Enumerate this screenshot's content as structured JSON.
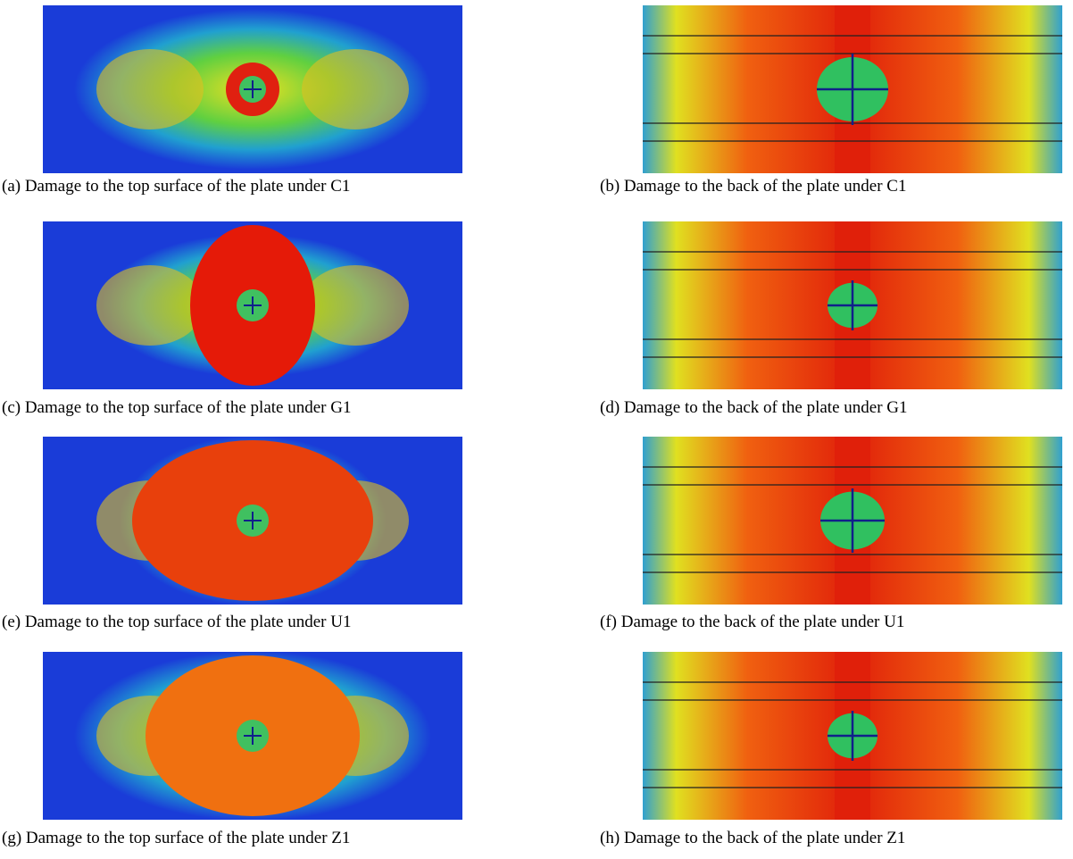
{
  "panels": [
    {
      "caption": "(a) Damage to the top surface of the plate under C1"
    },
    {
      "caption": "(b) Damage to the back of the plate under C1"
    },
    {
      "caption": "(c) Damage to the top surface of the plate under G1"
    },
    {
      "caption": "(d) Damage to the back of the plate under G1"
    },
    {
      "caption": "(e) Damage to the top surface of the plate under U1"
    },
    {
      "caption": "(f) Damage to the back of the plate under U1"
    },
    {
      "caption": "(g) Damage to the top surface of the plate under Z1"
    },
    {
      "caption": "(h) Damage to the back of the plate under Z1"
    }
  ]
}
